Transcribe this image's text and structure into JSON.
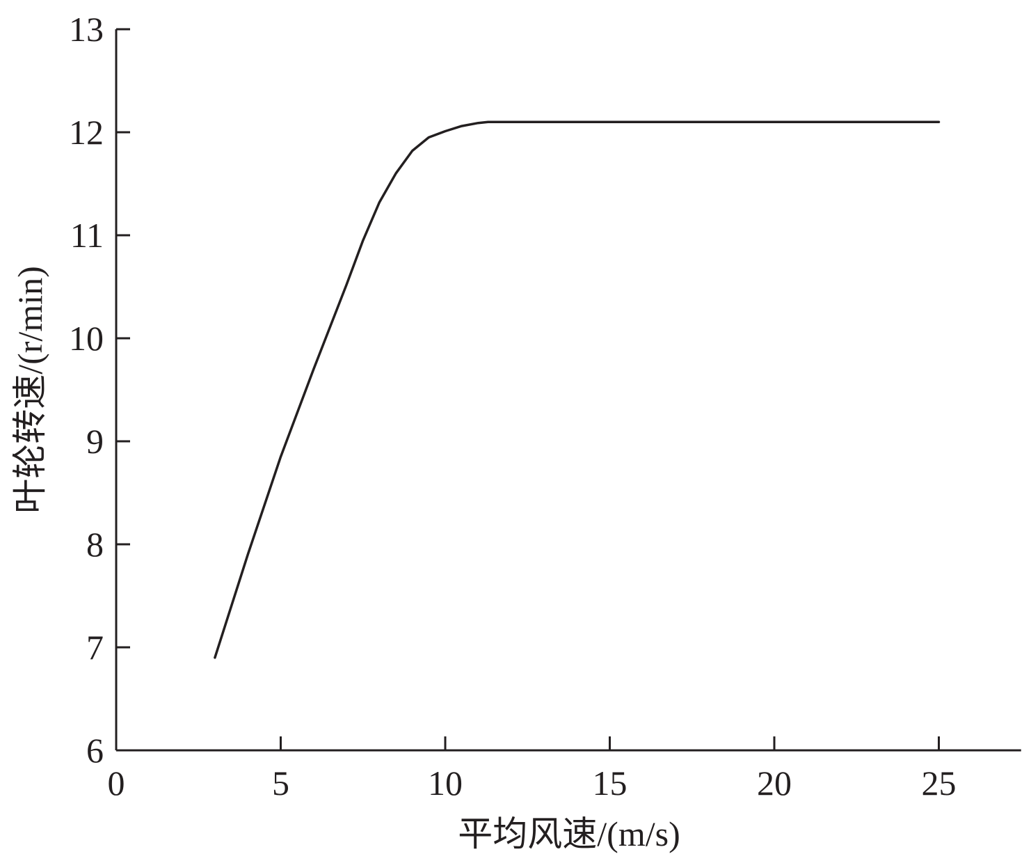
{
  "chart_data": {
    "type": "line",
    "title": "",
    "xlabel": "平均风速/(m/s)",
    "ylabel": "叶轮转速/(r/min)",
    "xlim": [
      0,
      27.5
    ],
    "ylim": [
      6,
      13
    ],
    "xticks": [
      "0",
      "5",
      "10",
      "15",
      "20",
      "25"
    ],
    "yticks": [
      "6",
      "7",
      "8",
      "9",
      "10",
      "11",
      "12",
      "13"
    ],
    "grid": false,
    "line_color": "#231f20",
    "series": [
      {
        "x": [
          3,
          4,
          5,
          6,
          7,
          7.5,
          8,
          8.5,
          9,
          9.5,
          10,
          10.5,
          11,
          11.3,
          12,
          15,
          20,
          25
        ],
        "y": [
          6.9,
          7.9,
          8.85,
          9.7,
          10.52,
          10.95,
          11.32,
          11.6,
          11.82,
          11.95,
          12.01,
          12.06,
          12.09,
          12.1,
          12.1,
          12.1,
          12.1,
          12.1
        ]
      }
    ]
  }
}
